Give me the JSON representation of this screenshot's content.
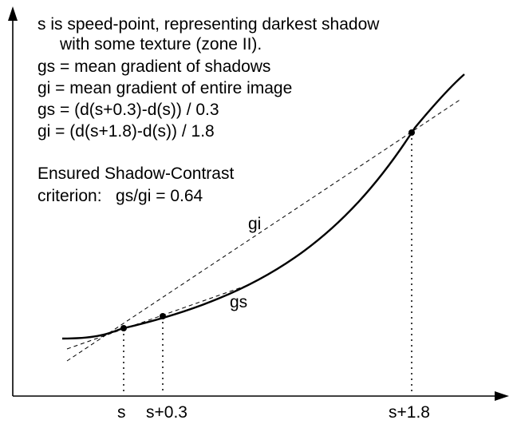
{
  "annotation": {
    "lines": [
      "s is speed-point, representing darkest shadow",
      "with some texture (zone II).",
      "gs = mean gradient of shadows",
      "gi = mean gradient of entire image",
      "gs = (d(s+0.3)-d(s)) / 0.3",
      "gi = (d(s+1.8)-d(s)) / 1.8"
    ],
    "criterion_title": "Ensured Shadow-Contrast",
    "criterion_line": "criterion:   gs/gi = 0.64"
  },
  "labels": {
    "gi": "gi",
    "gs": "gs"
  },
  "x_ticks": {
    "s": "s",
    "s_plus_0_3": "s+0.3",
    "s_plus_1_8": "s+1.8"
  },
  "colors": {
    "ink": "#000000",
    "background": "#ffffff"
  }
}
